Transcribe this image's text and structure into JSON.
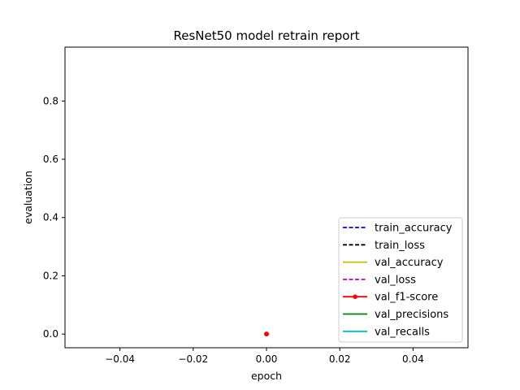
{
  "chart_data": {
    "type": "line",
    "title": "ResNet50 model retrain report",
    "xlabel": "epoch",
    "ylabel": "evaluation",
    "xlim": [
      -0.055,
      0.055
    ],
    "ylim": [
      -0.047,
      0.985
    ],
    "xticks": [
      -0.04,
      -0.02,
      0.0,
      0.02,
      0.04
    ],
    "xtick_labels": [
      "−0.04",
      "−0.02",
      "0.00",
      "0.02",
      "0.04"
    ],
    "yticks": [
      0.0,
      0.2,
      0.4,
      0.6,
      0.8
    ],
    "ytick_labels": [
      "0.0",
      "0.2",
      "0.4",
      "0.6",
      "0.8"
    ],
    "grid": false,
    "legend_position": "lower-right",
    "series": [
      {
        "name": "train_accuracy",
        "color": "#0000ff",
        "style": "dashed",
        "marker": "none",
        "points": []
      },
      {
        "name": "train_loss",
        "color": "#000000",
        "style": "dashed",
        "marker": "none",
        "points": []
      },
      {
        "name": "val_accuracy",
        "color": "#bfbf00",
        "style": "solid",
        "marker": "none",
        "points": []
      },
      {
        "name": "val_loss",
        "color": "#bf00bf",
        "style": "dashed",
        "marker": "none",
        "points": []
      },
      {
        "name": "val_f1-score",
        "color": "#ff0000",
        "style": "solid",
        "marker": "dot",
        "points": [
          [
            0,
            0.0
          ]
        ]
      },
      {
        "name": "val_precisions",
        "color": "#008000",
        "style": "solid",
        "marker": "none",
        "points": []
      },
      {
        "name": "val_recalls",
        "color": "#00bfbf",
        "style": "solid",
        "marker": "none",
        "points": []
      }
    ]
  }
}
